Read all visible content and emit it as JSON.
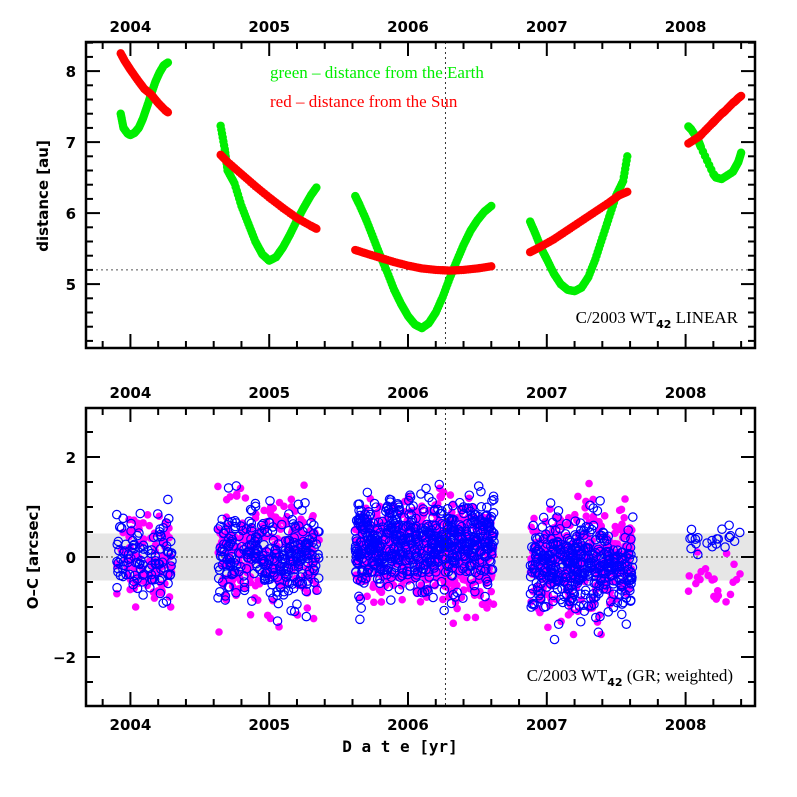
{
  "chart_data": [
    {
      "type": "scatter",
      "panel": "top",
      "title": "",
      "xlabel": "",
      "ylabel": "distance [au]",
      "xlim": [
        2003.68,
        2008.5
      ],
      "ylim": [
        4.1,
        8.41
      ],
      "x_ticks": [
        2004,
        2005,
        2006,
        2007,
        2008
      ],
      "x_tick_labels": [
        "2004",
        "2005",
        "2006",
        "2007",
        "2008"
      ],
      "x_minor_step": 0.2,
      "y_ticks": [
        5,
        6,
        7,
        8
      ],
      "y_tick_labels": [
        "5",
        "6",
        "7",
        "8"
      ],
      "y_minor_step": 0.2,
      "reference_lines": {
        "vertical_x": 2006.27,
        "horizontal_y": 5.2
      },
      "legend": [
        {
          "text": "green – distance from the Earth",
          "color": "#00ee00"
        },
        {
          "text": "red – distance from the Sun",
          "color": "#ff0000"
        }
      ],
      "annotation": {
        "main": "C/2003 WT",
        "sub": "42",
        "tail": " LINEAR",
        "position": "bottom-right"
      },
      "series": [
        {
          "name": "distance from the Earth",
          "color": "#00ee00",
          "segments": [
            {
              "x": [
                2003.93,
                2003.95,
                2003.98,
                2004.0,
                2004.03,
                2004.06,
                2004.09,
                2004.12,
                2004.15,
                2004.18,
                2004.21,
                2004.24,
                2004.27
              ],
              "y": [
                7.4,
                7.2,
                7.12,
                7.1,
                7.13,
                7.2,
                7.33,
                7.5,
                7.68,
                7.85,
                7.98,
                8.08,
                8.12
              ]
            },
            {
              "x": [
                2004.65,
                2004.68,
                2004.7,
                2004.75,
                2004.8,
                2004.85,
                2004.9,
                2004.95,
                2005.0,
                2005.05,
                2005.1,
                2005.15,
                2005.2,
                2005.25,
                2005.3,
                2005.34
              ],
              "y": [
                7.23,
                6.9,
                6.6,
                6.42,
                6.1,
                5.85,
                5.6,
                5.42,
                5.33,
                5.38,
                5.52,
                5.7,
                5.9,
                6.08,
                6.25,
                6.36
              ]
            },
            {
              "x": [
                2005.62,
                2005.65,
                2005.7,
                2005.75,
                2005.8,
                2005.85,
                2005.9,
                2005.95,
                2006.0,
                2006.05,
                2006.1,
                2006.15,
                2006.2,
                2006.25,
                2006.3,
                2006.35,
                2006.4,
                2006.45,
                2006.5,
                2006.55,
                2006.6
              ],
              "y": [
                6.24,
                6.12,
                5.9,
                5.65,
                5.4,
                5.17,
                4.92,
                4.72,
                4.55,
                4.43,
                4.38,
                4.45,
                4.6,
                4.82,
                5.08,
                5.32,
                5.55,
                5.75,
                5.9,
                6.02,
                6.1
              ]
            },
            {
              "x": [
                2006.88,
                2006.92,
                2006.96,
                2007.0,
                2007.05,
                2007.1,
                2007.15,
                2007.2,
                2007.25,
                2007.3,
                2007.35,
                2007.4,
                2007.45,
                2007.5,
                2007.55,
                2007.58
              ],
              "y": [
                5.88,
                5.7,
                5.5,
                5.35,
                5.15,
                5.0,
                4.92,
                4.9,
                4.95,
                5.1,
                5.35,
                5.65,
                5.95,
                6.25,
                6.45,
                6.8
              ]
            },
            {
              "x": [
                2008.02,
                2008.04,
                2008.09,
                2008.11,
                2008.2,
                2008.22,
                2008.26,
                2008.34,
                2008.36,
                2008.38,
                2008.4
              ],
              "y": [
                7.22,
                7.18,
                7.03,
                6.93,
                6.55,
                6.5,
                6.48,
                6.58,
                6.65,
                6.72,
                6.85
              ]
            }
          ]
        },
        {
          "name": "distance from the Sun",
          "color": "#ff0000",
          "segments": [
            {
              "x": [
                2003.93,
                2003.96,
                2004.0,
                2004.05,
                2004.1,
                2004.15,
                2004.2,
                2004.25,
                2004.27
              ],
              "y": [
                8.25,
                8.14,
                8.02,
                7.88,
                7.75,
                7.67,
                7.55,
                7.45,
                7.42
              ]
            },
            {
              "x": [
                2004.65,
                2004.7,
                2004.8,
                2004.9,
                2005.0,
                2005.1,
                2005.2,
                2005.3,
                2005.34
              ],
              "y": [
                6.82,
                6.72,
                6.55,
                6.38,
                6.22,
                6.07,
                5.93,
                5.82,
                5.78
              ]
            },
            {
              "x": [
                2005.62,
                2005.7,
                2005.8,
                2005.9,
                2006.0,
                2006.1,
                2006.2,
                2006.3,
                2006.4,
                2006.5,
                2006.6
              ],
              "y": [
                5.48,
                5.43,
                5.37,
                5.31,
                5.26,
                5.22,
                5.2,
                5.19,
                5.2,
                5.22,
                5.25
              ]
            },
            {
              "x": [
                2006.88,
                2006.95,
                2007.05,
                2007.15,
                2007.25,
                2007.35,
                2007.45,
                2007.52,
                2007.58
              ],
              "y": [
                5.45,
                5.52,
                5.63,
                5.76,
                5.89,
                6.02,
                6.15,
                6.25,
                6.3
              ]
            },
            {
              "x": [
                2008.02,
                2008.1,
                2008.12,
                2008.19,
                2008.21,
                2008.26,
                2008.28,
                2008.34,
                2008.36,
                2008.38,
                2008.4
              ],
              "y": [
                6.98,
                7.08,
                7.12,
                7.26,
                7.3,
                7.4,
                7.43,
                7.55,
                7.58,
                7.62,
                7.65
              ]
            }
          ]
        }
      ]
    },
    {
      "type": "scatter",
      "panel": "bottom",
      "title": "",
      "xlabel": "D a t e [yr]",
      "ylabel": "O–C [arcsec]",
      "xlim": [
        2003.68,
        2008.5
      ],
      "ylim": [
        -2.98,
        2.98
      ],
      "x_ticks": [
        2004,
        2005,
        2006,
        2007,
        2008
      ],
      "x_tick_labels": [
        "2004",
        "2005",
        "2006",
        "2007",
        "2008"
      ],
      "x_minor_step": 0.2,
      "y_ticks": [
        -2,
        0,
        2
      ],
      "y_tick_labels": [
        "−2",
        "0",
        "2"
      ],
      "y_minor_step": 0.5,
      "shaded_band": {
        "ymin": -0.47,
        "ymax": 0.47,
        "color": "#e6e6e6"
      },
      "reference_lines": {
        "vertical_x": 2006.27,
        "horizontal_y": 0
      },
      "annotation": {
        "main": "C/2003 WT",
        "sub": "42",
        "tail": " (GR; weighted)",
        "position": "bottom-right"
      },
      "series": [
        {
          "name": "residuals (filled)",
          "marker": "filled-circle",
          "color": "#ff00ff",
          "clusters": [
            {
              "x_range": [
                2003.9,
                2004.3
              ],
              "y_center": 0.0,
              "y_spread": 0.45,
              "y_min": -1.0,
              "y_max": 1.2,
              "n": 90
            },
            {
              "x_range": [
                2004.63,
                2005.36
              ],
              "y_center": 0.05,
              "y_spread": 0.5,
              "y_min": -1.5,
              "y_max": 1.72,
              "n": 260
            },
            {
              "x_range": [
                2005.62,
                2006.62
              ],
              "y_center": 0.1,
              "y_spread": 0.5,
              "y_min": -1.5,
              "y_max": 1.65,
              "n": 520
            },
            {
              "x_range": [
                2006.88,
                2007.62
              ],
              "y_center": -0.1,
              "y_spread": 0.5,
              "y_min": -1.55,
              "y_max": 1.66,
              "n": 340
            },
            {
              "x_range": [
                2008.02,
                2008.4
              ],
              "y_center": -0.45,
              "y_spread": 0.3,
              "y_min": -1.0,
              "y_max": 0.1,
              "n": 22
            }
          ]
        },
        {
          "name": "residuals (open)",
          "marker": "open-circle",
          "color": "#0000ff",
          "clusters": [
            {
              "x_range": [
                2003.9,
                2004.3
              ],
              "y_center": 0.0,
              "y_spread": 0.4,
              "y_min": -1.2,
              "y_max": 1.3,
              "n": 110
            },
            {
              "x_range": [
                2004.63,
                2005.36
              ],
              "y_center": 0.0,
              "y_spread": 0.45,
              "y_min": -1.55,
              "y_max": 1.68,
              "n": 300
            },
            {
              "x_range": [
                2005.62,
                2006.62
              ],
              "y_center": 0.25,
              "y_spread": 0.45,
              "y_min": -1.35,
              "y_max": 1.45,
              "n": 650
            },
            {
              "x_range": [
                2006.88,
                2007.62
              ],
              "y_center": -0.15,
              "y_spread": 0.45,
              "y_min": -1.65,
              "y_max": 1.45,
              "n": 420
            },
            {
              "x_range": [
                2008.02,
                2008.4
              ],
              "y_center": 0.35,
              "y_spread": 0.15,
              "y_min": 0.05,
              "y_max": 0.75,
              "n": 22
            }
          ]
        }
      ]
    }
  ]
}
